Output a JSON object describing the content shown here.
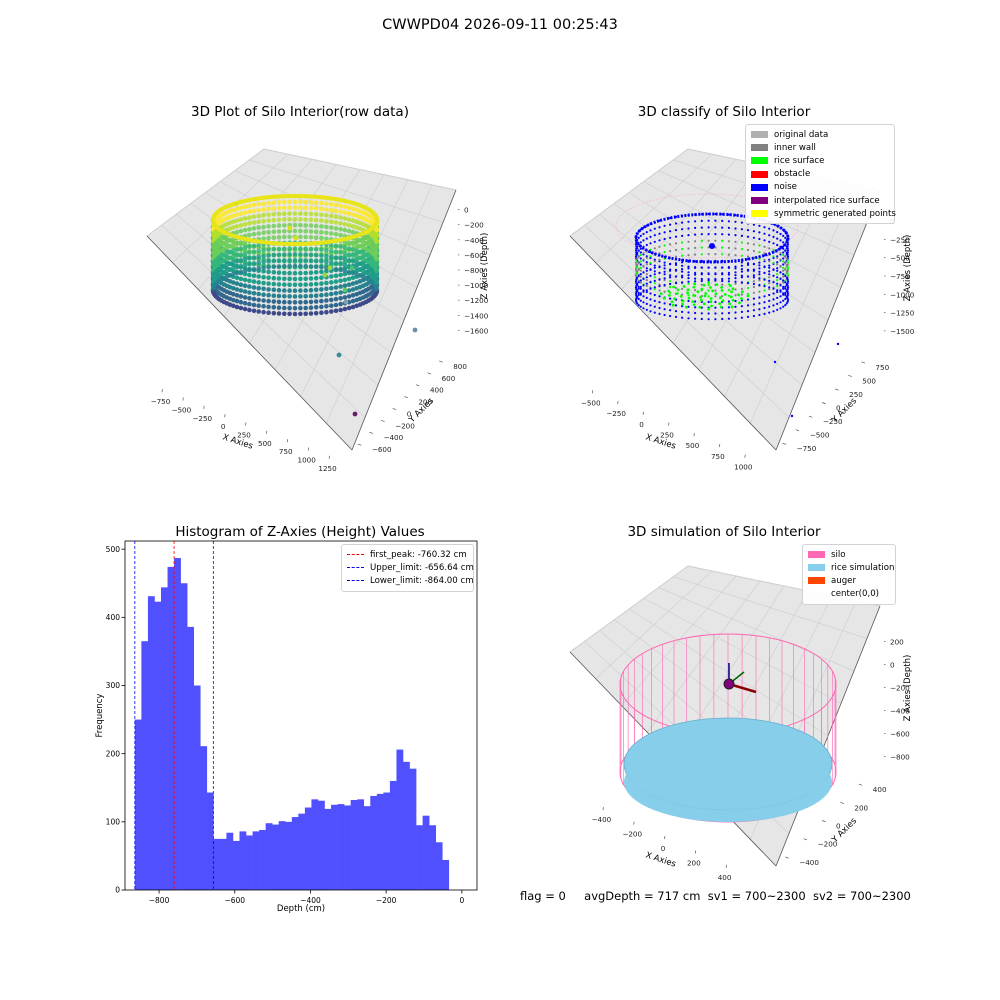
{
  "suptitle": "CWWPD04 2026-09-11 00:25:43",
  "status_line": {
    "flag": "flag = 0",
    "avg_depth": "avgDepth = 717 cm",
    "sv1": "sv1 = 700~2300",
    "sv2": "sv2 = 700~2300"
  },
  "colors": {
    "hist_bar": "#5050ff",
    "peak_line": "#ff0000",
    "limit_line": "#0000ff",
    "silo": "#ff69b4",
    "rice_simulation": "#87ceeb",
    "auger": "#ff4500",
    "original_data": "#b0b0b0",
    "inner_wall": "#808080",
    "rice_surface": "#00ff00",
    "obstacle": "#ff0000",
    "noise": "#0000ff",
    "interpolated_rice_surface": "#800080",
    "symmetric_generated_points": "#ffff00"
  },
  "chart_data": [
    {
      "type": "scatter",
      "title": "3D Plot of Silo Interior(row data)",
      "xlabel": "X Axies",
      "ylabel": "Y Axies",
      "zlabel": "Z Axies (Depth)",
      "x_ticks": [
        "−750",
        "−500",
        "−250",
        "0",
        "250",
        "500",
        "750",
        "1000",
        "1250"
      ],
      "y_ticks": [
        "−600",
        "−400",
        "−200",
        "0",
        "200",
        "400",
        "600",
        "800"
      ],
      "z_ticks": [
        "0",
        "−200",
        "−400",
        "−600",
        "−800",
        "−1000",
        "−1200",
        "−1400",
        "−1600"
      ],
      "colormap": "viridis",
      "grid": true
    },
    {
      "type": "scatter",
      "title": "3D classify of Silo Interior",
      "xlabel": "X Axies",
      "ylabel": "Y Axies",
      "zlabel": "Z Axies (Depth)",
      "x_ticks": [
        "−500",
        "−250",
        "0",
        "250",
        "500",
        "750",
        "1000"
      ],
      "y_ticks": [
        "−750",
        "−500",
        "−250",
        "0",
        "250",
        "500",
        "750"
      ],
      "z_ticks": [
        "0",
        "−250",
        "−500",
        "−750",
        "−1000",
        "−1250",
        "−1500"
      ],
      "legend": [
        "original data",
        "inner wall",
        "rice surface",
        "obstacle",
        "noise",
        "interpolated rice surface",
        "symmetric generated points"
      ],
      "legend_position": "top-right",
      "grid": true
    },
    {
      "type": "bar",
      "title": "Histogram of Z-Axies (Height) Values",
      "xlabel": "Depth (cm)",
      "ylabel": "Frequency",
      "xlim": [
        -890,
        40
      ],
      "ylim": [
        0,
        512
      ],
      "x_ticks": [
        -800,
        -600,
        -400,
        -200,
        0
      ],
      "x_tick_labels": [
        "−800",
        "−600",
        "−400",
        "−200",
        "0"
      ],
      "y_ticks": [
        0,
        100,
        200,
        300,
        400,
        500
      ],
      "bin_start": -864,
      "bin_width": 17.28,
      "values": [
        250,
        365,
        431,
        423,
        444,
        474,
        487,
        450,
        386,
        300,
        211,
        143,
        75,
        75,
        84,
        72,
        86,
        80,
        86,
        88,
        98,
        96,
        101,
        100,
        107,
        112,
        121,
        133,
        131,
        119,
        125,
        126,
        124,
        132,
        133,
        123,
        138,
        141,
        143,
        160,
        206,
        188,
        178,
        95,
        109,
        95,
        70,
        44
      ],
      "vlines": [
        {
          "x": -760.32,
          "label": "first_peak: -760.32 cm",
          "color": "#ff0000"
        },
        {
          "x": -656.64,
          "label": "Upper_limit: -656.64 cm",
          "color": "#0000ff"
        },
        {
          "x": -864.0,
          "label": "Lower_limit: -864.00 cm",
          "color": "#0000ff"
        }
      ],
      "legend_position": "top-right",
      "grid": false
    },
    {
      "type": "scatter",
      "title": "3D simulation of Silo Interior",
      "xlabel": "X Axies",
      "ylabel": "Y Axies",
      "zlabel": "Z Axies (Depth)",
      "x_ticks": [
        "−400",
        "−200",
        "0",
        "200",
        "400"
      ],
      "y_ticks": [
        "−400",
        "−200",
        "0",
        "200",
        "400"
      ],
      "z_ticks": [
        "200",
        "0",
        "−200",
        "−400",
        "−600",
        "−800"
      ],
      "legend": [
        "silo",
        "rice simulation",
        "auger",
        "center(0,0)"
      ],
      "legend_position": "top-right",
      "grid": true
    }
  ]
}
